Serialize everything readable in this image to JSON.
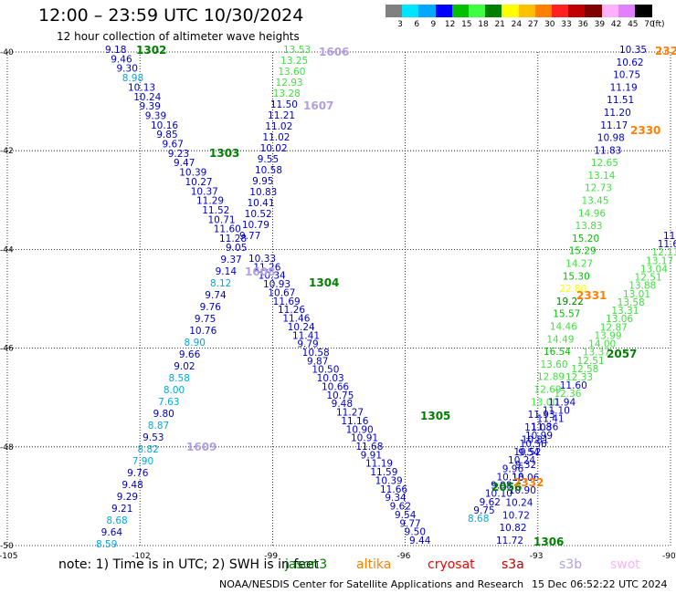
{
  "title": "12:00 – 23:59 UTC 10/30/2024",
  "subtitle": "12 hour collection of altimeter wave heights",
  "legend": {
    "ticks": [
      "3",
      "6",
      "9",
      "12",
      "15",
      "18",
      "21",
      "24",
      "27",
      "30",
      "33",
      "36",
      "39",
      "42",
      "45",
      "70"
    ],
    "unit": "(ft)",
    "colors": [
      "#808080",
      "#00e5ff",
      "#00a8ff",
      "#0000ff",
      "#00c000",
      "#40ff40",
      "#008000",
      "#ffff00",
      "#ffc000",
      "#ff8000",
      "#ff2020",
      "#c00000",
      "#800000",
      "#ffb0ff",
      "#e080ff",
      "#000000"
    ]
  },
  "axes": {
    "lat_labels": [
      "-40",
      "-42",
      "-44",
      "-46",
      "-48",
      "-50"
    ],
    "lon_labels": [
      "-105",
      "-102",
      "-99",
      "-96",
      "-93",
      "-90"
    ]
  },
  "pass_labels": [
    {
      "text": "1302",
      "color": "#008000"
    },
    {
      "text": "1303",
      "color": "#008000"
    },
    {
      "text": "1304",
      "color": "#008000"
    },
    {
      "text": "1305",
      "color": "#008000"
    },
    {
      "text": "1306",
      "color": "#008000"
    },
    {
      "text": "2057",
      "color": "#008000"
    },
    {
      "text": "2056",
      "color": "#008000"
    },
    {
      "text": "2330",
      "color": "#ff8000"
    },
    {
      "text": "2331",
      "color": "#ff8000"
    },
    {
      "text": "2332",
      "color": "#ff8000"
    },
    {
      "text": "232",
      "color": "#ff8000"
    },
    {
      "text": "1606",
      "color": "#b0a0e0"
    },
    {
      "text": "1607",
      "color": "#b0a0e0"
    },
    {
      "text": "1608",
      "color": "#b0a0e0"
    },
    {
      "text": "1609",
      "color": "#b0a0e0"
    }
  ],
  "tracks": {
    "track_a": [
      "9.18",
      "9.46",
      "9.30",
      "8.98",
      "10.13",
      "10.24",
      "9.39",
      "9.39",
      "10.16",
      "9.85",
      "9.67",
      "9.23",
      "9.47",
      "10.39",
      "10.27",
      "10.37",
      "11.29",
      "11.52",
      "10.71",
      "11.60",
      "11.28",
      "9.05",
      "9.37",
      "9.14",
      "8.12",
      "9.74",
      "9.76",
      "9.75",
      "10.76",
      "8.90",
      "9.66",
      "9.02",
      "8.58",
      "8.00",
      "7.63",
      "9.80",
      "8.87",
      "9.53",
      "8.82",
      "7.90",
      "9.76",
      "9.48",
      "9.29",
      "9.21",
      "8.68",
      "9.64",
      "8.59"
    ],
    "track_b": [
      "13.53",
      "13.25",
      "13.60",
      "12.93",
      "13.28",
      "11.50",
      "11.21",
      "11.02",
      "11.02",
      "10.02",
      "9.55",
      "10.58",
      "9.95",
      "10.83",
      "10.41",
      "10.52",
      "10.79",
      "9.77",
      "10.33",
      "11.26",
      "10.34",
      "10.93",
      "10.67",
      "11.69",
      "11.26",
      "11.46",
      "10.24",
      "11.41",
      "9.79",
      "10.58",
      "9.87",
      "10.50",
      "10.03",
      "10.66",
      "10.75",
      "9.48",
      "11.27",
      "11.16",
      "10.90",
      "10.91",
      "11.68",
      "9.91",
      "11.19",
      "11.59",
      "10.39",
      "11.66",
      "9.34",
      "9.62",
      "9.54",
      "9.77",
      "9.50",
      "9.44"
    ],
    "track_c": [
      "10.35",
      "10.62",
      "10.75",
      "11.19",
      "11.51",
      "11.20",
      "11.17",
      "10.98",
      "11.83",
      "12.65",
      "13.14",
      "12.73",
      "13.45",
      "14.96",
      "13.83",
      "15.20",
      "15.29",
      "14.27",
      "15.30",
      "22.80",
      "19.22",
      "15.57",
      "14.46",
      "14.49",
      "16.54",
      "13.60",
      "12.89",
      "12.69",
      "13.00",
      "11.93",
      "11.08",
      "10.81",
      "9.54",
      "9.32",
      "10.06",
      "10.90",
      "10.24",
      "10.72",
      "10.82",
      "11.72"
    ],
    "track_d": [
      "11.",
      "11.6",
      "12.11",
      "13.17",
      "13.04",
      "12.51",
      "13.88",
      "13.01",
      "13.58",
      "13.31",
      "13.06",
      "12.87",
      "13.99",
      "14.00",
      "13.37",
      "12.51",
      "12.58",
      "12.33",
      "11.60",
      "12.36",
      "11.94",
      "11.10",
      "11.41",
      "11.36",
      "10.99",
      "10.56",
      "10.52",
      "10.24",
      "9.96",
      "10.18",
      "9.98",
      "10.10",
      "9.62",
      "9.75",
      "8.68"
    ]
  },
  "note_text": "note:  1) Time is in UTC;  2) SWH is in feet",
  "satellites": [
    {
      "name": "jason3",
      "color": "#008000"
    },
    {
      "name": "altika",
      "color": "#ff8000"
    },
    {
      "name": "cryosat",
      "color": "#ff0000"
    },
    {
      "name": "s3a",
      "color": "#c00000"
    },
    {
      "name": "s3b",
      "color": "#b0a0e0"
    },
    {
      "name": "swot",
      "color": "#ffb0ff"
    }
  ],
  "credit": "NOAA/NESDIS Center for Satellite Applications and Research",
  "credit_date": "15 Dec 06:52:22 UTC 2024"
}
